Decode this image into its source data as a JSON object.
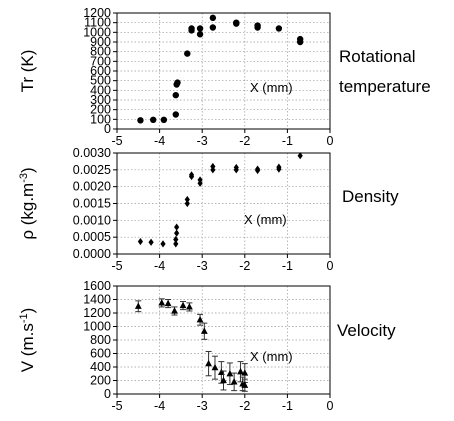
{
  "chart_data": [
    {
      "type": "scatter",
      "marker": "circle",
      "ylabel": "Tr (K)",
      "side_label": [
        "Rotational",
        "temperature"
      ],
      "annotation": "X (mm)",
      "xlim": [
        -5,
        0
      ],
      "ylim": [
        0,
        1200
      ],
      "x_ticks": [
        -5,
        -4,
        -3,
        -2,
        -1,
        0
      ],
      "y_ticks": [
        0,
        100,
        200,
        300,
        400,
        500,
        600,
        700,
        800,
        900,
        1000,
        1100,
        1200
      ],
      "y_tick_labels": [
        "0",
        "100",
        "200",
        "300",
        "400",
        "500",
        "600",
        "700",
        "800",
        "900",
        "1000",
        "1100",
        "1200"
      ],
      "grid": true,
      "series": [
        {
          "color": "#000000",
          "points": [
            [
              -4.45,
              90
            ],
            [
              -4.15,
              95
            ],
            [
              -3.9,
              95
            ],
            [
              -3.62,
              150
            ],
            [
              -3.62,
              350
            ],
            [
              -3.6,
              460
            ],
            [
              -3.58,
              480
            ],
            [
              -3.35,
              780
            ],
            [
              -3.25,
              1020
            ],
            [
              -3.25,
              1040
            ],
            [
              -3.05,
              980
            ],
            [
              -3.05,
              1040
            ],
            [
              -2.75,
              1050
            ],
            [
              -2.75,
              1150
            ],
            [
              -2.2,
              1090
            ],
            [
              -2.2,
              1100
            ],
            [
              -1.7,
              1050
            ],
            [
              -1.7,
              1070
            ],
            [
              -1.2,
              1040
            ],
            [
              -0.7,
              900
            ],
            [
              -0.7,
              930
            ]
          ]
        }
      ]
    },
    {
      "type": "scatter",
      "marker": "diamond",
      "ylabel": "ρ (kg.m-3)",
      "side_label": [
        "Density"
      ],
      "annotation": "X (mm)",
      "xlim": [
        -5,
        0
      ],
      "ylim": [
        0,
        0.003
      ],
      "x_ticks": [
        -5,
        -4,
        -3,
        -2,
        -1,
        0
      ],
      "y_ticks": [
        0,
        0.0005,
        0.001,
        0.0015,
        0.002,
        0.0025,
        0.003
      ],
      "y_tick_labels": [
        "0.0000",
        "0.0005",
        "0.0010",
        "0.0015",
        "0.0020",
        "0.0025",
        "0.0030"
      ],
      "grid": true,
      "series": [
        {
          "color": "#000000",
          "points": [
            [
              -4.45,
              0.00037
            ],
            [
              -4.2,
              0.00035
            ],
            [
              -3.92,
              0.0003
            ],
            [
              -3.62,
              0.0003
            ],
            [
              -3.62,
              0.00043
            ],
            [
              -3.6,
              0.00062
            ],
            [
              -3.6,
              0.0008
            ],
            [
              -3.35,
              0.0015
            ],
            [
              -3.35,
              0.00162
            ],
            [
              -3.25,
              0.0023
            ],
            [
              -3.25,
              0.00235
            ],
            [
              -3.05,
              0.0021
            ],
            [
              -3.05,
              0.0022
            ],
            [
              -2.75,
              0.0025
            ],
            [
              -2.75,
              0.0026
            ],
            [
              -2.2,
              0.0025
            ],
            [
              -2.2,
              0.00257
            ],
            [
              -1.7,
              0.00248
            ],
            [
              -1.7,
              0.00252
            ],
            [
              -1.2,
              0.00252
            ],
            [
              -1.2,
              0.00258
            ],
            [
              -0.7,
              0.00292
            ]
          ]
        }
      ]
    },
    {
      "type": "scatter",
      "marker": "triangle",
      "ylabel": "V (m.s-1)",
      "side_label": [
        "Velocity"
      ],
      "annotation": "X (mm)",
      "xlim": [
        -5,
        0
      ],
      "ylim": [
        0,
        1600
      ],
      "x_ticks": [
        -5,
        -4,
        -3,
        -2,
        -1,
        0
      ],
      "y_ticks": [
        0,
        200,
        400,
        600,
        800,
        1000,
        1200,
        1400,
        1600
      ],
      "y_tick_labels": [
        "0",
        "200",
        "400",
        "600",
        "800",
        "1000",
        "1200",
        "1400",
        "1600"
      ],
      "grid": true,
      "series": [
        {
          "color": "#000000",
          "points": [
            [
              -4.5,
              1300,
              80
            ],
            [
              -3.95,
              1350,
              60
            ],
            [
              -3.8,
              1340,
              60
            ],
            [
              -3.65,
              1230,
              60
            ],
            [
              -3.45,
              1310,
              60
            ],
            [
              -3.3,
              1290,
              60
            ],
            [
              -3.05,
              1100,
              80
            ],
            [
              -2.95,
              930,
              120
            ],
            [
              -2.85,
              450,
              180
            ],
            [
              -2.7,
              390,
              170
            ],
            [
              -2.55,
              320,
              160
            ],
            [
              -2.5,
              200,
              140
            ],
            [
              -2.35,
              300,
              160
            ],
            [
              -2.25,
              180,
              130
            ],
            [
              -2.1,
              330,
              150
            ],
            [
              -2.05,
              150,
              100
            ],
            [
              -2.0,
              310,
              140
            ],
            [
              -2.0,
              130,
              90
            ]
          ]
        }
      ]
    }
  ]
}
